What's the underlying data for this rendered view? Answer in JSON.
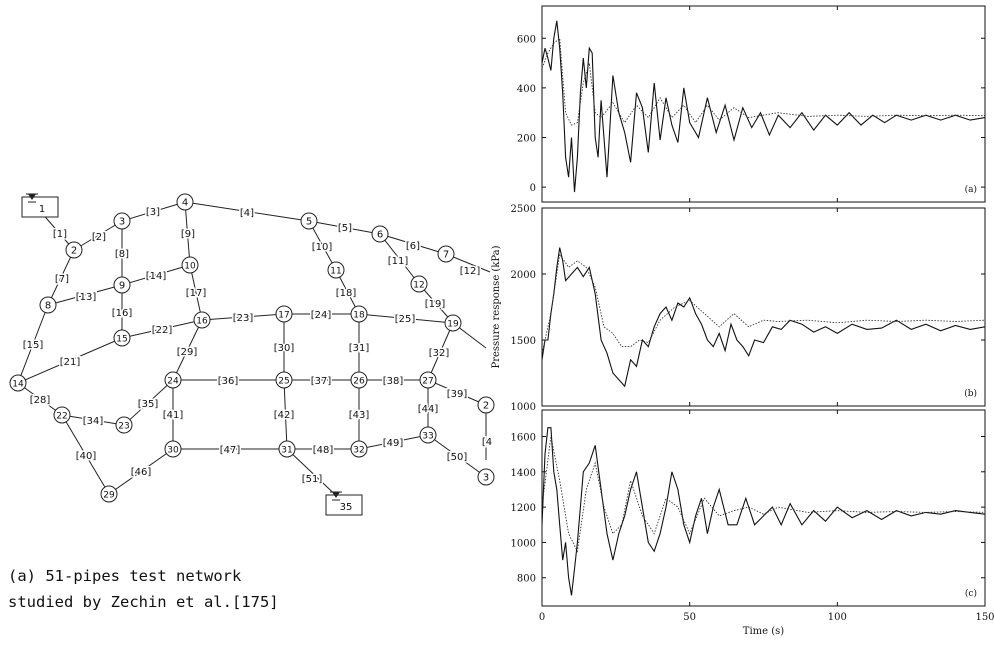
{
  "network": {
    "caption_label": "(a)",
    "caption_text": "51-pipes test network studied by Zechin et al.[175]",
    "nodes": [
      {
        "id": "1",
        "kind": "reservoir"
      },
      {
        "id": "2"
      },
      {
        "id": "3"
      },
      {
        "id": "4"
      },
      {
        "id": "5"
      },
      {
        "id": "6"
      },
      {
        "id": "7"
      },
      {
        "id": "8"
      },
      {
        "id": "9"
      },
      {
        "id": "10"
      },
      {
        "id": "11"
      },
      {
        "id": "12"
      },
      {
        "id": "14"
      },
      {
        "id": "15"
      },
      {
        "id": "16"
      },
      {
        "id": "17"
      },
      {
        "id": "18"
      },
      {
        "id": "19"
      },
      {
        "id": "22"
      },
      {
        "id": "23"
      },
      {
        "id": "24"
      },
      {
        "id": "25"
      },
      {
        "id": "26"
      },
      {
        "id": "27"
      },
      {
        "id": "2"
      },
      {
        "id": "29"
      },
      {
        "id": "30"
      },
      {
        "id": "31"
      },
      {
        "id": "32"
      },
      {
        "id": "33"
      },
      {
        "id": "3"
      },
      {
        "id": "35",
        "kind": "reservoir"
      }
    ],
    "pipes": [
      "[1]",
      "[2]",
      "[3]",
      "[4]",
      "[5]",
      "[6]",
      "[7]",
      "[8]",
      "[9]",
      "[10]",
      "[11]",
      "[12]",
      "[13]",
      "[14]",
      "[15]",
      "[16]",
      "[17]",
      "[18]",
      "[19]",
      "[21]",
      "[22]",
      "[23]",
      "[24]",
      "[25]",
      "[28]",
      "[29]",
      "[30]",
      "[31]",
      "[32]",
      "[34]",
      "[35]",
      "[36]",
      "[37]",
      "[38]",
      "[39]",
      "[40]",
      "[41]",
      "[42]",
      "[43]",
      "[44]",
      "[4",
      "[46]",
      "[47]",
      "[48]",
      "[49]",
      "[50]",
      "[51]"
    ]
  },
  "chart_data": [
    {
      "type": "line",
      "panel_label": "(a)",
      "xlim": [
        0,
        150
      ],
      "ylim": [
        -60,
        730
      ],
      "yticks": [
        0,
        200,
        400,
        600
      ],
      "xticks": [
        0,
        50,
        100,
        150
      ],
      "series": [
        {
          "style": "solid",
          "color": "#111111",
          "x": [
            0,
            1,
            2,
            3,
            4,
            5,
            6,
            7,
            8,
            9,
            10,
            11,
            12,
            13,
            14,
            15,
            16,
            17,
            18,
            19,
            20,
            22,
            24,
            26,
            28,
            30,
            32,
            34,
            36,
            38,
            40,
            42,
            44,
            46,
            48,
            50,
            53,
            56,
            59,
            62,
            65,
            68,
            71,
            74,
            77,
            80,
            84,
            88,
            92,
            96,
            100,
            104,
            108,
            112,
            116,
            120,
            125,
            130,
            135,
            140,
            145,
            150
          ],
          "y": [
            500,
            560,
            520,
            470,
            600,
            670,
            560,
            380,
            120,
            40,
            200,
            -20,
            120,
            380,
            520,
            400,
            560,
            540,
            200,
            120,
            350,
            40,
            450,
            300,
            220,
            100,
            380,
            320,
            140,
            420,
            190,
            360,
            250,
            180,
            400,
            260,
            200,
            360,
            220,
            330,
            190,
            320,
            240,
            300,
            210,
            290,
            240,
            300,
            230,
            290,
            250,
            300,
            250,
            290,
            260,
            290,
            270,
            290,
            270,
            290,
            270,
            280
          ]
        },
        {
          "style": "dotted",
          "color": "#333333",
          "x": [
            0,
            2,
            4,
            6,
            8,
            10,
            12,
            14,
            16,
            18,
            20,
            24,
            28,
            32,
            36,
            40,
            44,
            48,
            52,
            56,
            60,
            65,
            70,
            80,
            90,
            100,
            110,
            120,
            130,
            140,
            150
          ],
          "y": [
            480,
            540,
            580,
            600,
            300,
            250,
            260,
            420,
            500,
            300,
            280,
            340,
            260,
            330,
            280,
            360,
            280,
            330,
            260,
            330,
            270,
            320,
            280,
            300,
            285,
            290,
            285,
            290,
            288,
            290,
            288
          ]
        }
      ]
    },
    {
      "type": "line",
      "panel_label": "(b)",
      "ylabel": "Pressure response (kPa)",
      "xlim": [
        0,
        150
      ],
      "ylim": [
        1000,
        2500
      ],
      "yticks": [
        1000,
        1500,
        2000,
        2500
      ],
      "xticks": [
        0,
        50,
        100,
        150
      ],
      "series": [
        {
          "style": "solid",
          "color": "#111111",
          "x": [
            0,
            1,
            2,
            3,
            4,
            5,
            6,
            7,
            8,
            10,
            12,
            14,
            16,
            18,
            20,
            22,
            24,
            26,
            28,
            30,
            32,
            34,
            36,
            38,
            40,
            42,
            44,
            46,
            48,
            50,
            52,
            54,
            56,
            58,
            60,
            62,
            64,
            66,
            68,
            70,
            72,
            75,
            78,
            81,
            84,
            88,
            92,
            96,
            100,
            105,
            110,
            115,
            120,
            125,
            130,
            135,
            140,
            145,
            150
          ],
          "y": [
            1350,
            1500,
            1500,
            1700,
            1850,
            2050,
            2200,
            2100,
            1950,
            2000,
            2050,
            1980,
            2050,
            1850,
            1500,
            1400,
            1250,
            1200,
            1150,
            1350,
            1300,
            1500,
            1450,
            1600,
            1700,
            1750,
            1650,
            1780,
            1750,
            1820,
            1700,
            1620,
            1500,
            1450,
            1550,
            1420,
            1620,
            1500,
            1450,
            1380,
            1500,
            1480,
            1600,
            1580,
            1650,
            1620,
            1560,
            1600,
            1550,
            1620,
            1580,
            1590,
            1650,
            1580,
            1620,
            1570,
            1610,
            1580,
            1600
          ]
        },
        {
          "style": "dotted",
          "color": "#333333",
          "x": [
            0,
            3,
            6,
            9,
            12,
            15,
            18,
            21,
            24,
            27,
            30,
            33,
            36,
            40,
            45,
            50,
            55,
            60,
            65,
            70,
            75,
            80,
            90,
            100,
            110,
            120,
            130,
            140,
            150
          ],
          "y": [
            1400,
            1700,
            2150,
            2050,
            2100,
            2050,
            1900,
            1600,
            1550,
            1450,
            1450,
            1500,
            1480,
            1650,
            1750,
            1800,
            1700,
            1600,
            1700,
            1600,
            1650,
            1640,
            1650,
            1630,
            1650,
            1640,
            1650,
            1640,
            1650
          ]
        }
      ]
    },
    {
      "type": "line",
      "panel_label": "(c)",
      "xlabel": "Time (s)",
      "xlim": [
        0,
        150
      ],
      "ylim": [
        640,
        1750
      ],
      "yticks": [
        800,
        1000,
        1200,
        1400,
        1600
      ],
      "xticks": [
        0,
        50,
        100,
        150
      ],
      "series": [
        {
          "style": "solid",
          "color": "#111111",
          "x": [
            0,
            1,
            2,
            3,
            4,
            5,
            6,
            7,
            8,
            9,
            10,
            11,
            12,
            13,
            14,
            16,
            18,
            20,
            22,
            24,
            26,
            28,
            30,
            32,
            34,
            36,
            38,
            40,
            42,
            44,
            46,
            48,
            50,
            52,
            54,
            56,
            58,
            60,
            63,
            66,
            69,
            72,
            75,
            78,
            81,
            84,
            88,
            92,
            96,
            100,
            105,
            110,
            115,
            120,
            125,
            130,
            135,
            140,
            145,
            150
          ],
          "y": [
            1100,
            1500,
            1650,
            1650,
            1400,
            1300,
            1100,
            900,
            1000,
            800,
            700,
            850,
            1000,
            1200,
            1400,
            1450,
            1550,
            1300,
            1050,
            900,
            1050,
            1150,
            1300,
            1400,
            1200,
            1000,
            950,
            1050,
            1200,
            1400,
            1300,
            1100,
            1000,
            1150,
            1250,
            1050,
            1200,
            1300,
            1100,
            1100,
            1250,
            1100,
            1150,
            1200,
            1100,
            1220,
            1100,
            1180,
            1120,
            1200,
            1140,
            1180,
            1130,
            1180,
            1150,
            1170,
            1160,
            1180,
            1170,
            1160
          ]
        },
        {
          "style": "dotted",
          "color": "#333333",
          "x": [
            0,
            3,
            6,
            9,
            12,
            15,
            18,
            21,
            24,
            27,
            30,
            34,
            38,
            42,
            46,
            50,
            55,
            60,
            65,
            70,
            75,
            80,
            90,
            100,
            110,
            120,
            130,
            140,
            150
          ],
          "y": [
            1200,
            1600,
            1350,
            1050,
            950,
            1300,
            1450,
            1200,
            1050,
            1100,
            1350,
            1150,
            1050,
            1250,
            1200,
            1050,
            1250,
            1150,
            1180,
            1200,
            1160,
            1200,
            1170,
            1180,
            1170,
            1175,
            1170,
            1175,
            1170
          ]
        }
      ]
    }
  ]
}
